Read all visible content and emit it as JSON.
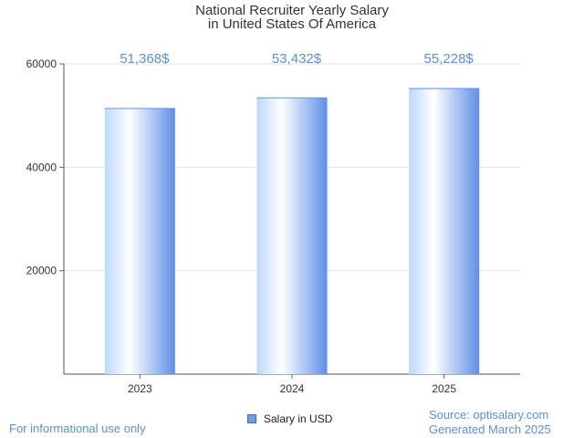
{
  "chart_data": {
    "type": "bar",
    "title_line1": "National Recruiter Yearly Salary",
    "title_line2": "in United States Of America",
    "categories": [
      "2023",
      "2024",
      "2025"
    ],
    "series": [
      {
        "name": "Salary in USD",
        "values": [
          51368,
          53432,
          55228
        ]
      }
    ],
    "data_labels": [
      "51,368$",
      "53,432$",
      "55,228$"
    ],
    "y_ticks": [
      "60000",
      "40000",
      "20000"
    ],
    "ylim": [
      0,
      60000
    ],
    "grid": true,
    "legend_position": "bottom-center"
  },
  "footer": {
    "left": "For informational use only",
    "source": "Source: optisalary.com",
    "generated": "Generated March 2025"
  },
  "colors": {
    "bar_light": "#ffffff",
    "bar_mid": "#bcd8ff",
    "bar_dark": "#5f8fe8",
    "label": "#5b8fd6"
  }
}
